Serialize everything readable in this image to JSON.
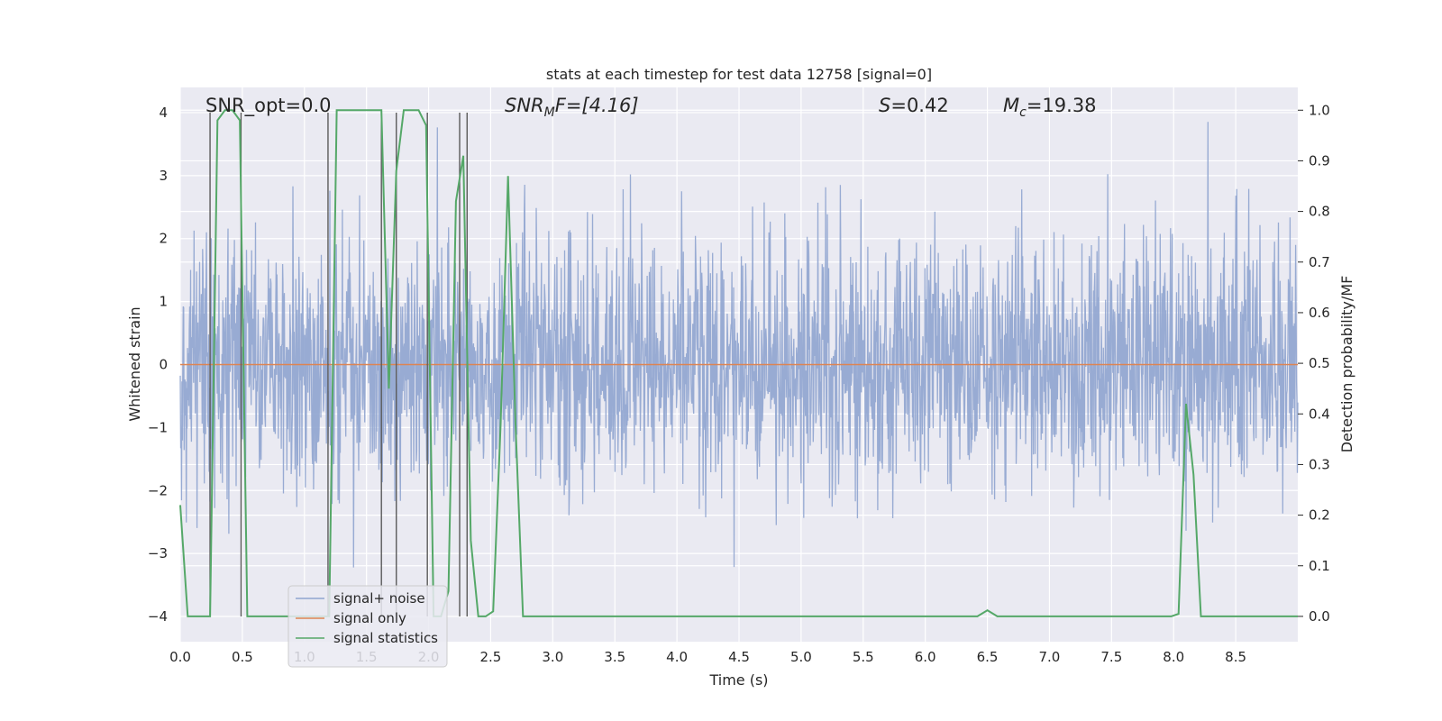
{
  "chart_data": {
    "type": "line",
    "title": "stats at each timestep for test data 12758 [signal=0]",
    "xlabel": "Time (s)",
    "ylabel": "Whitened strain",
    "ylabel_right": "Detection probability/MF",
    "xlim": [
      0.0,
      9.0
    ],
    "ylim": [
      -4.4,
      4.4
    ],
    "ylim_right": [
      -0.05,
      1.045
    ],
    "x_ticks": [
      "0.0",
      "0.5",
      "1.0",
      "1.5",
      "2.0",
      "2.5",
      "3.0",
      "3.5",
      "4.0",
      "4.5",
      "5.0",
      "5.5",
      "6.0",
      "6.5",
      "7.0",
      "7.5",
      "8.0",
      "8.5"
    ],
    "y_ticks": [
      "4",
      "3",
      "2",
      "1",
      "0",
      "−1",
      "−2",
      "−3",
      "−4"
    ],
    "y_ticks_right": [
      "1.0",
      "0.9",
      "0.8",
      "0.7",
      "0.6",
      "0.5",
      "0.4",
      "0.3",
      "0.2",
      "0.1",
      "0.0"
    ],
    "grid": true,
    "legend_position": "lower-left",
    "colors": {
      "signal_noise": "#8fa4cf",
      "signal_only": "#dd8452",
      "signal_statistics": "#55a868",
      "vertical_markers": "#5a5a5a",
      "axes_background": "#eaeaf2",
      "grid": "#ffffff"
    },
    "annotations": {
      "snr_opt": "SNR_opt=0.0",
      "snr_mf": "SNR<sub>M</sub>F=[4.16]",
      "snr_mf_base": "SNR",
      "snr_mf_sub": "M",
      "snr_mf_rest": "F=[4.16]",
      "s": "S=0.42",
      "s_base": "S",
      "s_rest": "=0.42",
      "mc_base": "M",
      "mc_sub": "c",
      "mc_rest": "=19.38"
    },
    "series": [
      {
        "name": "signal+ noise",
        "kind": "dense-noise",
        "mean": 0.0,
        "std": 1.0,
        "peak_max": 4.0,
        "peak_min": -4.0
      },
      {
        "name": "signal only",
        "kind": "line",
        "x": [
          0.0,
          9.0
        ],
        "y": [
          0.0,
          0.0
        ]
      },
      {
        "name": "signal statistics",
        "axis": "right",
        "kind": "line",
        "x": [
          0.0,
          0.06,
          0.12,
          0.18,
          0.24,
          0.3,
          0.36,
          0.42,
          0.48,
          0.54,
          0.6,
          0.66,
          0.72,
          0.78,
          0.84,
          0.9,
          0.96,
          1.02,
          1.08,
          1.14,
          1.2,
          1.26,
          1.32,
          1.38,
          1.44,
          1.5,
          1.56,
          1.62,
          1.68,
          1.74,
          1.8,
          1.86,
          1.92,
          1.98,
          2.04,
          2.1,
          2.16,
          2.22,
          2.28,
          2.34,
          2.4,
          2.46,
          2.52,
          2.58,
          2.64,
          2.7,
          2.76,
          2.82,
          2.88,
          3.0,
          6.3,
          6.42,
          6.5,
          6.58,
          6.7,
          7.8,
          7.98,
          8.04,
          8.1,
          8.16,
          8.22,
          8.28,
          8.4,
          9.0
        ],
        "y": [
          0.22,
          0.0,
          0.0,
          0.0,
          0.0,
          0.98,
          1.0,
          1.0,
          0.98,
          0.0,
          0.0,
          0.0,
          0.0,
          0.0,
          0.0,
          0.0,
          0.0,
          0.0,
          0.0,
          0.0,
          0.0,
          1.0,
          1.0,
          1.0,
          1.0,
          1.0,
          1.0,
          1.0,
          0.45,
          0.88,
          1.0,
          1.0,
          1.0,
          0.97,
          0.0,
          0.0,
          0.05,
          0.82,
          0.91,
          0.15,
          0.0,
          0.0,
          0.01,
          0.38,
          0.87,
          0.38,
          0.0,
          0.0,
          0.0,
          0.0,
          0.0,
          0.0,
          0.012,
          0.0,
          0.0,
          0.0,
          0.0,
          0.005,
          0.42,
          0.28,
          0.0,
          0.0,
          0.0,
          0.0
        ]
      }
    ],
    "vertical_markers_x": [
      0.24,
      0.49,
      1.19,
      1.62,
      1.74,
      1.99,
      2.25,
      2.31
    ]
  }
}
